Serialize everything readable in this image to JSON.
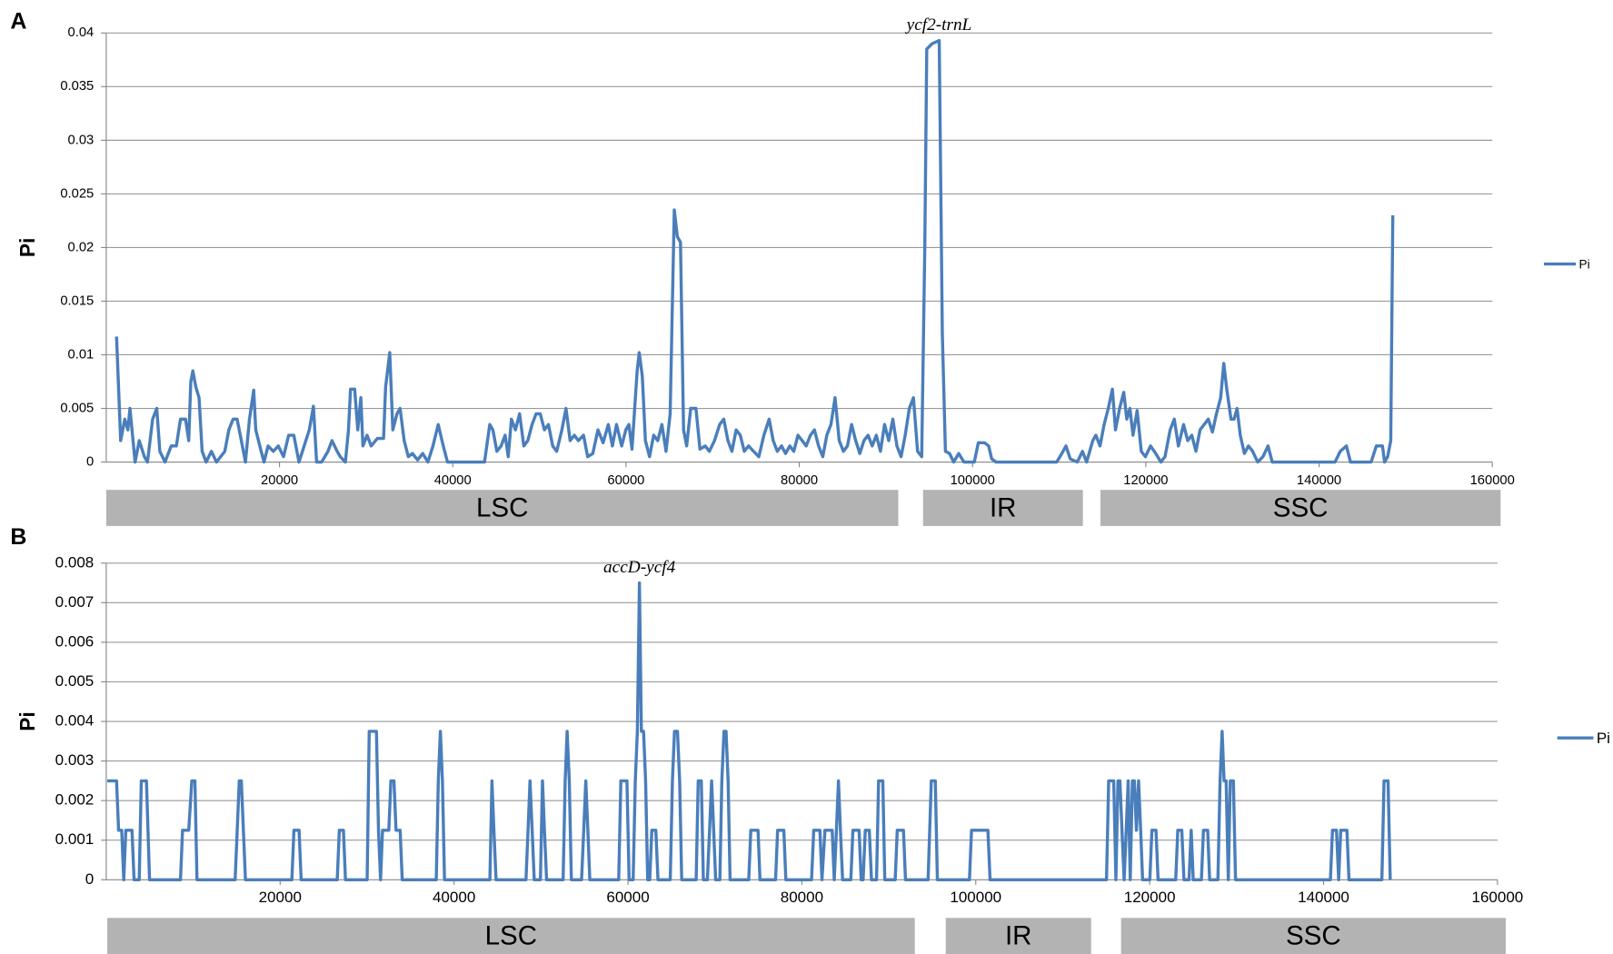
{
  "chart_data": [
    {
      "type": "line",
      "panel": "A",
      "annotation": "ycf2-trnL",
      "y_label": "Pi",
      "regions": [
        "LSC",
        "IR",
        "SSC"
      ],
      "legend": "right",
      "grid": true,
      "xlim": [
        0,
        160000
      ],
      "xticks": [
        20000,
        40000,
        60000,
        80000,
        100000,
        120000,
        140000,
        160000
      ],
      "ylim": [
        0,
        0.04
      ],
      "yticks": [
        0,
        0.005,
        0.01,
        0.015,
        0.02,
        0.025,
        0.03,
        0.035,
        0.04
      ],
      "x": [
        1190,
        1670,
        2140,
        2500,
        2740,
        3090,
        3330,
        3810,
        4400,
        4760,
        5360,
        5830,
        6190,
        6780,
        7500,
        8090,
        8570,
        9160,
        9520,
        9760,
        10000,
        10350,
        10710,
        11070,
        11540,
        12140,
        12730,
        13690,
        14160,
        14640,
        15110,
        15590,
        16070,
        16540,
        17020,
        17260,
        17730,
        18210,
        18680,
        19280,
        19870,
        20470,
        21060,
        21660,
        22250,
        22850,
        23440,
        23920,
        24280,
        24870,
        25590,
        26060,
        26660,
        27010,
        27610,
        27970,
        28200,
        28680,
        29040,
        29390,
        29630,
        30110,
        30580,
        31300,
        32010,
        32250,
        32730,
        33080,
        33560,
        33920,
        34390,
        34870,
        35340,
        35940,
        36530,
        37130,
        37720,
        38320,
        38910,
        39390,
        43670,
        44270,
        44630,
        45100,
        45580,
        46050,
        46410,
        46770,
        47240,
        47720,
        48200,
        48670,
        49150,
        49620,
        50100,
        50580,
        51050,
        51530,
        52000,
        52600,
        53070,
        53550,
        54030,
        54500,
        55100,
        55570,
        56170,
        56760,
        57360,
        57950,
        58430,
        58910,
        59500,
        59980,
        60330,
        60690,
        61290,
        61520,
        61880,
        62240,
        62710,
        63190,
        63670,
        64140,
        64620,
        65090,
        65570,
        65930,
        66280,
        66640,
        67000,
        67470,
        68070,
        68540,
        69140,
        69620,
        70210,
        70810,
        71280,
        71760,
        72230,
        72710,
        73190,
        73660,
        74140,
        74730,
        75330,
        75920,
        76520,
        76990,
        77470,
        77950,
        78420,
        78900,
        79370,
        79850,
        80330,
        80800,
        81280,
        81750,
        82230,
        82710,
        83180,
        83660,
        84130,
        84610,
        85090,
        85560,
        86040,
        86510,
        86990,
        87470,
        87940,
        88420,
        88890,
        89370,
        89850,
        90320,
        90800,
        91270,
        91750,
        92230,
        92700,
        93180,
        93650,
        94130,
        94490,
        94720,
        95320,
        96150,
        96510,
        96870,
        97340,
        97820,
        98410,
        99010,
        100200,
        100670,
        101390,
        101860,
        102220,
        102700,
        109720,
        110310,
        110790,
        111270,
        112100,
        112690,
        113170,
        113880,
        114240,
        114720,
        115190,
        115670,
        116140,
        116500,
        116980,
        117450,
        117810,
        118170,
        118520,
        119000,
        119480,
        119950,
        120550,
        121140,
        121740,
        122210,
        122810,
        123280,
        123760,
        124360,
        124830,
        125310,
        125780,
        126260,
        126740,
        127210,
        127690,
        128160,
        128640,
        129000,
        129350,
        129830,
        130190,
        130540,
        130900,
        131380,
        131850,
        132330,
        132920,
        133520,
        134110,
        134590,
        135300,
        141850,
        142440,
        143160,
        143630,
        146010,
        146610,
        147320,
        147560,
        147920,
        148270,
        148510
      ],
      "series": [
        {
          "name": "Pi",
          "color": "#4a7ebb",
          "values": [
            0.0117,
            0.002,
            0.004,
            0.003,
            0.005,
            0.002,
            0,
            0.002,
            0.0005,
            0,
            0.004,
            0.005,
            0.001,
            0,
            0.0015,
            0.0015,
            0.004,
            0.004,
            0.002,
            0.0075,
            0.0085,
            0.007,
            0.006,
            0.001,
            0,
            0.001,
            0,
            0.001,
            0.003,
            0.004,
            0.004,
            0.002,
            0,
            0.004,
            0.0067,
            0.003,
            0.0015,
            0,
            0.0015,
            0.001,
            0.0015,
            0.0005,
            0.0025,
            0.0025,
            0,
            0.0015,
            0.003,
            0.0052,
            0,
            0,
            0.001,
            0.002,
            0.001,
            0.0005,
            0,
            0.003,
            0.0068,
            0.0068,
            0.003,
            0.006,
            0.0015,
            0.0025,
            0.0015,
            0.0022,
            0.0022,
            0.007,
            0.0102,
            0.003,
            0.0045,
            0.005,
            0.002,
            0.0005,
            0.0008,
            0.0002,
            0.0008,
            0,
            0.0015,
            0.0035,
            0.0015,
            0,
            0,
            0.0035,
            0.003,
            0.001,
            0.0015,
            0.0025,
            0.0005,
            0.004,
            0.003,
            0.0045,
            0.0015,
            0.002,
            0.0035,
            0.0045,
            0.0045,
            0.003,
            0.0035,
            0.0015,
            0.001,
            0.003,
            0.005,
            0.002,
            0.0025,
            0.002,
            0.0025,
            0.0005,
            0.0008,
            0.003,
            0.0018,
            0.0035,
            0.0015,
            0.0035,
            0.0015,
            0.003,
            0.0035,
            0.0012,
            0.0085,
            0.0102,
            0.008,
            0.002,
            0.0005,
            0.0025,
            0.002,
            0.0035,
            0.001,
            0.0045,
            0.0235,
            0.021,
            0.0205,
            0.003,
            0.0015,
            0.005,
            0.005,
            0.0012,
            0.0015,
            0.001,
            0.002,
            0.0035,
            0.004,
            0.002,
            0.001,
            0.003,
            0.0025,
            0.001,
            0.0015,
            0.001,
            0.0005,
            0.0025,
            0.004,
            0.002,
            0.001,
            0.0015,
            0.0008,
            0.0015,
            0.001,
            0.0025,
            0.002,
            0.0015,
            0.0025,
            0.003,
            0.0015,
            0.0005,
            0.0025,
            0.0035,
            0.006,
            0.002,
            0.001,
            0.0015,
            0.0035,
            0.002,
            0.0008,
            0.002,
            0.0025,
            0.0015,
            0.0025,
            0.001,
            0.0035,
            0.002,
            0.004,
            0.0015,
            0.0005,
            0.0025,
            0.005,
            0.006,
            0.001,
            0.0005,
            0.02,
            0.0385,
            0.039,
            0.0393,
            0.012,
            0.001,
            0.0008,
            0,
            0.0008,
            0,
            0,
            0.0018,
            0.0018,
            0.0015,
            0.0003,
            0,
            0,
            0.0008,
            0.0015,
            0.0003,
            0,
            0.001,
            0,
            0.002,
            0.0025,
            0.0015,
            0.0035,
            0.005,
            0.0068,
            0.003,
            0.005,
            0.0065,
            0.004,
            0.005,
            0.0025,
            0.0048,
            0.001,
            0.0005,
            0.0015,
            0.0008,
            0,
            0.0005,
            0.003,
            0.004,
            0.0015,
            0.0035,
            0.002,
            0.0025,
            0.001,
            0.003,
            0.0035,
            0.004,
            0.0028,
            0.0045,
            0.006,
            0.0092,
            0.0068,
            0.004,
            0.004,
            0.005,
            0.0025,
            0.0008,
            0.0015,
            0.001,
            0,
            0.0005,
            0.0015,
            0,
            0,
            0,
            0.001,
            0.0015,
            0,
            0,
            0.0015,
            0.0015,
            0,
            0.0005,
            0.002,
            0.023
          ]
        }
      ]
    },
    {
      "type": "line",
      "panel": "B",
      "annotation": "accD-ycf4",
      "y_label": "Pi",
      "regions": [
        "LSC",
        "IR",
        "SSC"
      ],
      "legend": "right",
      "grid": true,
      "xlim": [
        0,
        160000
      ],
      "xticks": [
        20000,
        40000,
        60000,
        80000,
        100000,
        120000,
        140000,
        160000
      ],
      "ylim": [
        0,
        0.008
      ],
      "yticks": [
        0,
        0.001,
        0.002,
        0.003,
        0.004,
        0.005,
        0.006,
        0.007,
        0.008
      ],
      "x": [
        120,
        1190,
        1420,
        1780,
        2020,
        2250,
        2970,
        3200,
        3800,
        4030,
        4630,
        4980,
        8540,
        8780,
        9490,
        9840,
        10200,
        10440,
        14830,
        15060,
        15300,
        15540,
        15770,
        16010,
        21350,
        21590,
        22180,
        22420,
        26570,
        26800,
        27280,
        27520,
        30010,
        30240,
        31070,
        31310,
        31550,
        31780,
        32500,
        32730,
        33090,
        33330,
        33800,
        34040,
        37950,
        38190,
        38430,
        38660,
        38900,
        44120,
        44360,
        44590,
        44830,
        48270,
        48510,
        48740,
        48980,
        49220,
        49930,
        50170,
        50400,
        50640,
        52540,
        52780,
        53010,
        53250,
        53490,
        54670,
        54910,
        55150,
        55390,
        55620,
        58940,
        59180,
        59890,
        60130,
        60600,
        60840,
        61080,
        61320,
        61550,
        61790,
        62030,
        62270,
        62500,
        62740,
        63210,
        63450,
        64870,
        65110,
        65350,
        65700,
        65940,
        66180,
        67840,
        68080,
        68430,
        68670,
        69140,
        69380,
        69620,
        69860,
        70090,
        70570,
        70800,
        71040,
        71280,
        71520,
        71750,
        73890,
        74130,
        74960,
        75190,
        76970,
        77210,
        77920,
        78160,
        81120,
        81360,
        82070,
        82310,
        82660,
        83490,
        83730,
        83970,
        84210,
        84440,
        84680,
        85630,
        85870,
        86580,
        86820,
        87050,
        87290,
        87760,
        88000,
        88590,
        88830,
        89310,
        89540,
        90730,
        90970,
        91680,
        91920,
        94520,
        94880,
        95350,
        95590,
        99270,
        99510,
        101400,
        101640,
        115040,
        115280,
        115870,
        116110,
        116350,
        116580,
        116820,
        117060,
        117300,
        117530,
        117770,
        118010,
        118240,
        118480,
        118720,
        118960,
        119190,
        120020,
        120260,
        120730,
        120970,
        122990,
        123230,
        123700,
        123940,
        124530,
        124770,
        125010,
        125950,
        126190,
        126670,
        126900,
        127850,
        128090,
        128330,
        128560,
        128800,
        129040,
        129270,
        129630,
        129870,
        140780,
        141020,
        141490,
        141730,
        141970,
        142680,
        142920,
        146710,
        146950,
        147420,
        147660
      ],
      "series": [
        {
          "name": "Pi",
          "color": "#4a7ebb",
          "values": [
            0.0025,
            0.0025,
            0.00125,
            0.00125,
            0,
            0.00125,
            0.00125,
            0,
            0,
            0.0025,
            0.0025,
            0,
            0,
            0.00125,
            0.00125,
            0.0025,
            0.0025,
            0,
            0,
            0.00125,
            0.0025,
            0.0025,
            0.00125,
            0,
            0,
            0.00125,
            0.00125,
            0,
            0,
            0.00125,
            0.00125,
            0,
            0,
            0.00375,
            0.00375,
            0.00125,
            0,
            0.00125,
            0.00125,
            0.0025,
            0.0025,
            0.00125,
            0.00125,
            0,
            0,
            0.0025,
            0.00375,
            0.0025,
            0,
            0,
            0.0025,
            0.00125,
            0,
            0,
            0.00125,
            0.0025,
            0.00125,
            0,
            0,
            0.0025,
            0.00125,
            0,
            0,
            0.0025,
            0.00375,
            0.0025,
            0,
            0,
            0.00125,
            0.0025,
            0.00125,
            0,
            0,
            0.0025,
            0.0025,
            0,
            0,
            0.0025,
            0.00375,
            0.0075,
            0.00375,
            0.00375,
            0.0025,
            0,
            0,
            0.00125,
            0.00125,
            0,
            0,
            0.0025,
            0.00375,
            0.00375,
            0.0025,
            0,
            0,
            0.0025,
            0.0025,
            0,
            0,
            0.00125,
            0.0025,
            0.00125,
            0,
            0,
            0.0025,
            0.00375,
            0.00375,
            0.0025,
            0,
            0,
            0.00125,
            0.00125,
            0,
            0,
            0.00125,
            0.00125,
            0,
            0,
            0.00125,
            0.00125,
            0,
            0.00125,
            0.00125,
            0,
            0.00125,
            0.0025,
            0.00125,
            0,
            0,
            0.00125,
            0.00125,
            0,
            0,
            0.00125,
            0.00125,
            0,
            0,
            0.0025,
            0.0025,
            0,
            0,
            0.00125,
            0.00125,
            0,
            0,
            0.0025,
            0.0025,
            0,
            0,
            0.00125,
            0.00125,
            0,
            0,
            0.0025,
            0.0025,
            0,
            0.0025,
            0.0025,
            0.00125,
            0,
            0.00125,
            0.0025,
            0,
            0.0025,
            0.0025,
            0.00125,
            0.0025,
            0.00125,
            0,
            0,
            0.00125,
            0.00125,
            0,
            0,
            0.00125,
            0.00125,
            0,
            0,
            0.00125,
            0,
            0,
            0.00125,
            0.00125,
            0,
            0,
            0.0025,
            0.00375,
            0.0025,
            0.0025,
            0,
            0.0025,
            0.0025,
            0,
            0,
            0.00125,
            0.00125,
            0,
            0.00125,
            0.00125,
            0,
            0,
            0.0025,
            0.0025,
            0
          ]
        }
      ]
    }
  ]
}
